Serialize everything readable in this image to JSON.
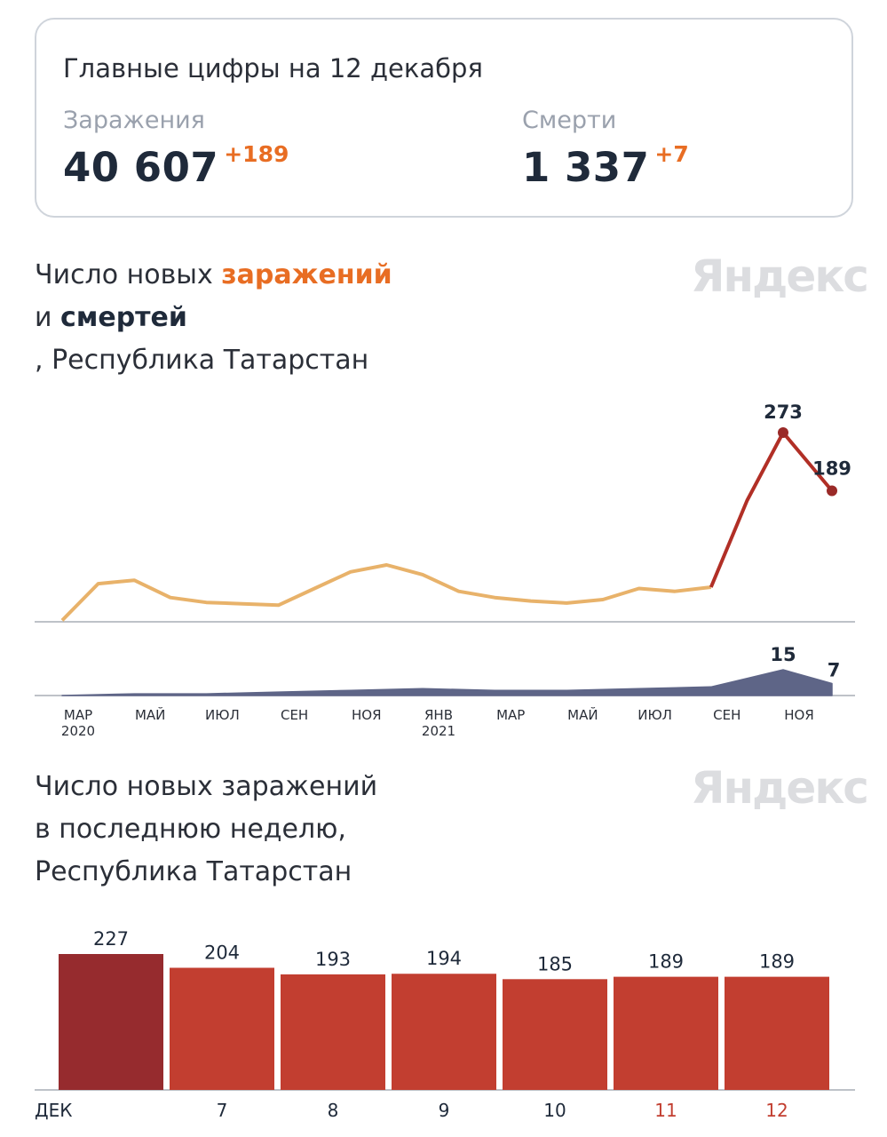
{
  "summary": {
    "title": "Главные цифры на 12 декабря",
    "infections": {
      "label": "Заражения",
      "value": "40 607",
      "delta": "+189"
    },
    "deaths": {
      "label": "Смерти",
      "value": "1 337",
      "delta": "+7"
    }
  },
  "chart1": {
    "title_part1": "Число новых ",
    "title_accent1": "заражений",
    "title_line2_prefix": "и ",
    "title_accent2": "смертей",
    "title_line3": ", Республика Татарстан",
    "watermark": "Яндекс"
  },
  "chart2": {
    "title_line1": "Число новых заражений",
    "title_line2": "в последнюю неделю,",
    "title_line3": "Республика Татарстан",
    "watermark": "Яндекс"
  },
  "colors": {
    "infections": "#e8b26a",
    "infections_peak": "#b12f26",
    "deaths": "#5e6587",
    "bar_first": "#962b2e",
    "bar": "#c23e30",
    "axis_red": "#c23e30"
  },
  "chart_data": [
    {
      "type": "line",
      "series": [
        {
          "name": "заражения",
          "x": [
            "2020-03",
            "2020-04",
            "2020-05",
            "2020-06",
            "2020-07",
            "2020-08",
            "2020-09",
            "2020-10",
            "2020-11",
            "2020-12",
            "2021-01",
            "2021-02",
            "2021-03",
            "2021-04",
            "2021-05",
            "2021-06",
            "2021-07",
            "2021-08",
            "2021-09",
            "2021-10",
            "2021-11",
            "2021-12-12"
          ],
          "values": [
            2,
            55,
            60,
            35,
            28,
            26,
            24,
            48,
            72,
            82,
            68,
            44,
            35,
            30,
            27,
            32,
            48,
            44,
            50,
            175,
            273,
            189
          ]
        },
        {
          "name": "смерти",
          "x": [
            "2020-03",
            "2020-05",
            "2020-07",
            "2020-09",
            "2020-11",
            "2021-01",
            "2021-03",
            "2021-05",
            "2021-07",
            "2021-09",
            "2021-10",
            "2021-11",
            "2021-12-12"
          ],
          "values": [
            0,
            1,
            1,
            2,
            3,
            4,
            3,
            3,
            4,
            5,
            10,
            15,
            7
          ]
        }
      ],
      "peak_label": "273",
      "last_label": "189",
      "deaths_peak_label": "15",
      "deaths_last_label": "7",
      "x_ticks": [
        {
          "month": "МАР",
          "year": "2020"
        },
        {
          "month": "МАЙ",
          "year": ""
        },
        {
          "month": "ИЮЛ",
          "year": ""
        },
        {
          "month": "СЕН",
          "year": ""
        },
        {
          "month": "НОЯ",
          "year": ""
        },
        {
          "month": "ЯНВ",
          "year": "2021"
        },
        {
          "month": "МАР",
          "year": ""
        },
        {
          "month": "МАЙ",
          "year": ""
        },
        {
          "month": "ИЮЛ",
          "year": ""
        },
        {
          "month": "СЕН",
          "year": ""
        },
        {
          "month": "НОЯ",
          "year": ""
        }
      ]
    },
    {
      "type": "bar",
      "categories": [
        "ДЕК",
        "7",
        "8",
        "9",
        "10",
        "11",
        "12"
      ],
      "values": [
        227,
        204,
        193,
        194,
        185,
        189,
        189
      ],
      "weekend_categories": [
        "11",
        "12"
      ]
    }
  ]
}
